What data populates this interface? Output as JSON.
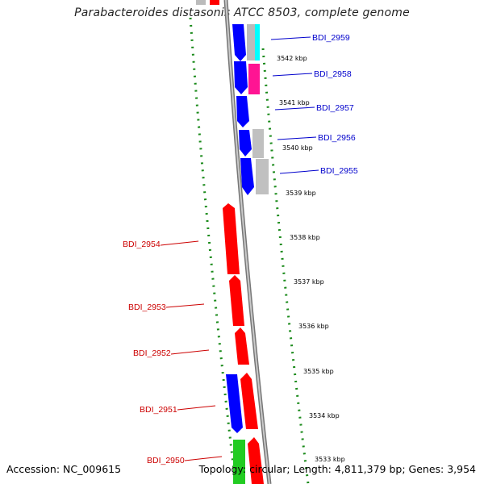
{
  "title": "Parabacteroides distasonis ATCC 8503, complete genome",
  "accession": "Accession: NC_009615",
  "topology": "Topology: circular; Length: 4,811,379 bp; Genes: 3,954",
  "colors": {
    "forward_gene": "#ff0000",
    "reverse_gene": "#0000ff",
    "rna": "#ff1493",
    "pseudo": "#bbbbbb",
    "other_gene": "#00cc00",
    "cyan_feature": "#00ffff",
    "label_forward": "#cc0000",
    "label_reverse": "#0000cc",
    "backbone": "#888888",
    "tick_dots": "#228b22"
  },
  "ticks": [
    "3542 kbp",
    "3541 kbp",
    "3540 kbp",
    "3539 kbp",
    "3538 kbp",
    "3537 kbp",
    "3536 kbp",
    "3535 kbp",
    "3534 kbp",
    "3533 kbp"
  ],
  "genes_reverse_strand": [
    "BDI_2959",
    "BDI_2958",
    "BDI_2957",
    "BDI_2956",
    "BDI_2955"
  ],
  "genes_forward_strand": [
    "BDI_2954",
    "BDI_2953",
    "BDI_2952",
    "BDI_2951",
    "BDI_2950"
  ]
}
